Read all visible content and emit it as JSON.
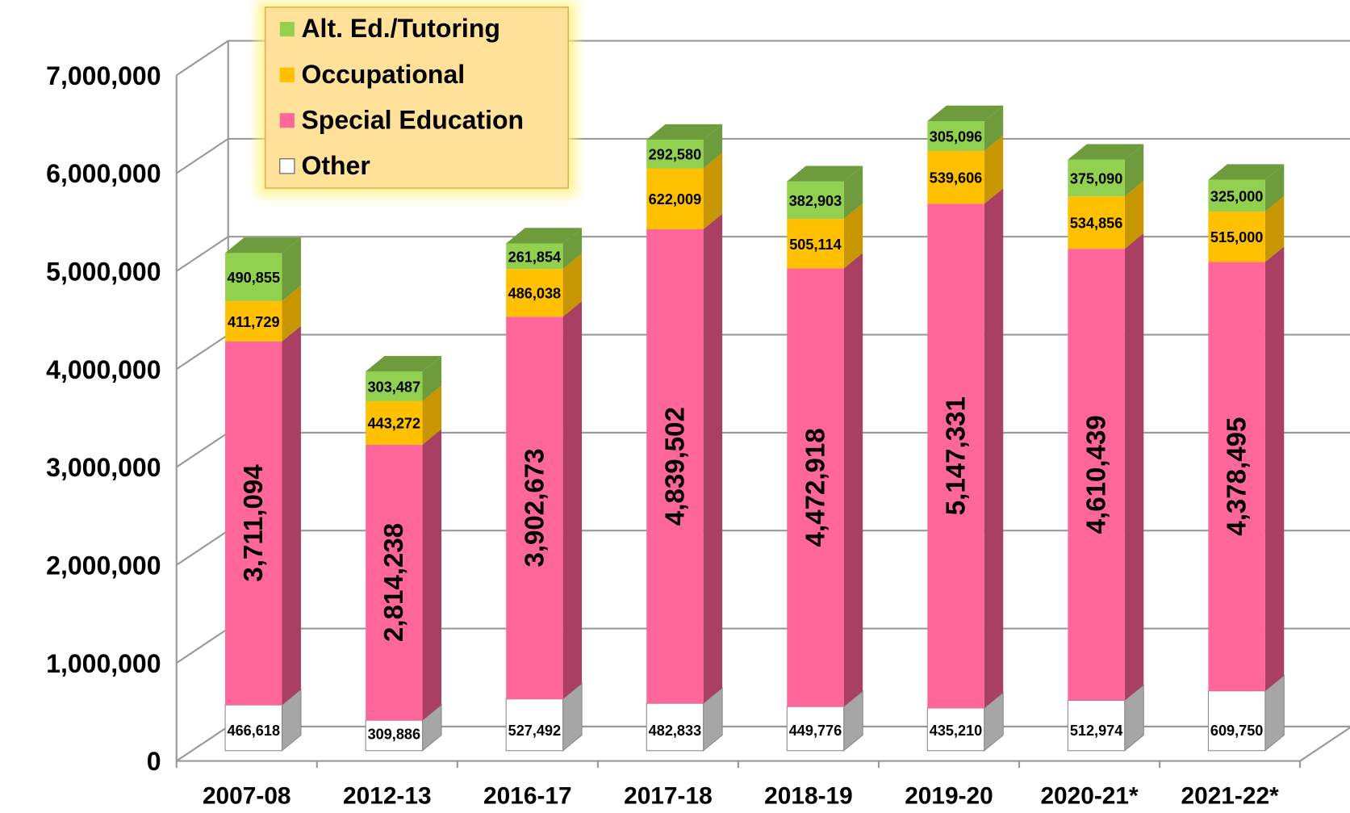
{
  "chart_data": {
    "type": "bar",
    "stacked": true,
    "legend": "upper left",
    "grid": true,
    "categories": [
      "2007-08",
      "2012-13",
      "2016-17",
      "2017-18",
      "2018-19",
      "2019-20",
      "2020-21*",
      "2021-22*"
    ],
    "series": [
      {
        "name": "Other",
        "color": "#ffffff",
        "values": [
          466618,
          309886,
          527492,
          482833,
          449776,
          435210,
          512974,
          609750
        ],
        "value_labels": [
          "466,618",
          "309,886",
          "527,492",
          "482,833",
          "449,776",
          "435,210",
          "512,974",
          "609,750"
        ]
      },
      {
        "name": "Special Education",
        "color": "#ff6699",
        "values": [
          3711094,
          2814238,
          3902673,
          4839502,
          4472918,
          5147331,
          4610439,
          4378495
        ],
        "value_labels": [
          "3,711,094",
          "2,814,238",
          "3,902,673",
          "4,839,502",
          "4,472,918",
          "5,147,331",
          "4,610,439",
          "4,378,495"
        ]
      },
      {
        "name": "Occupational",
        "color": "#ffc000",
        "values": [
          411729,
          443272,
          486038,
          622009,
          505114,
          539606,
          534856,
          515000
        ],
        "value_labels": [
          "411,729",
          "443,272",
          "486,038",
          "622,009",
          "505,114",
          "539,606",
          "534,856",
          "515,000"
        ]
      },
      {
        "name": "Alt. Ed./Tutoring",
        "color": "#92d050",
        "values": [
          490855,
          303487,
          261854,
          292580,
          382903,
          305096,
          375090,
          325000
        ],
        "value_labels": [
          "490,855",
          "303,487",
          "261,854",
          "292,580",
          "382,903",
          "305,096",
          "375,090",
          "325,000"
        ]
      }
    ],
    "ylim": [
      0,
      7000000
    ],
    "yticks": [
      0,
      {
        "value": 1000000,
        "label": "1,000,000"
      },
      {
        "value": 2000000,
        "label": "2,000,000"
      },
      {
        "value": 3000000,
        "label": "3,000,000"
      },
      {
        "value": 4000000,
        "label": "4,000,000"
      },
      {
        "value": 5000000,
        "label": "5,000,000"
      },
      {
        "value": 6000000,
        "label": "6,000,000"
      },
      {
        "value": 7000000,
        "label": "7,000,000"
      }
    ]
  }
}
